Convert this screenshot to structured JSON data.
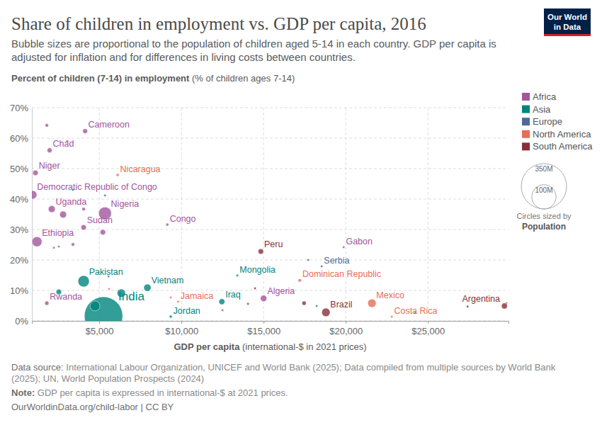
{
  "chart_data": {
    "type": "scatter",
    "title": "Share of children in employment vs. GDP per capita, 2016",
    "subtitle": "Bubble sizes are proportional to the population of children aged 5-14 in each country. GDP per capita is adjusted for inflation and for differences in living costs between countries.",
    "ylabel": "Percent of children (7-14) in employment",
    "ylabel_note": "(% of children ages 7-14)",
    "xlabel": "GDP per capita",
    "xlabel_note": "(international-$ in 2021 prices)",
    "xlim": [
      900,
      29900
    ],
    "ylim": [
      0,
      70
    ],
    "xticks": [
      {
        "value": 5000,
        "label": "$5,000"
      },
      {
        "value": 10000,
        "label": "$10,000"
      },
      {
        "value": 15000,
        "label": "$15,000"
      },
      {
        "value": 20000,
        "label": "$20,000"
      },
      {
        "value": 25000,
        "label": "$25,000"
      }
    ],
    "yticks": [
      {
        "value": 0,
        "label": "0%"
      },
      {
        "value": 10,
        "label": "10%"
      },
      {
        "value": 20,
        "label": "20%"
      },
      {
        "value": 30,
        "label": "30%"
      },
      {
        "value": 40,
        "label": "40%"
      },
      {
        "value": 50,
        "label": "50%"
      },
      {
        "value": 60,
        "label": "60%"
      },
      {
        "value": 70,
        "label": "70%"
      }
    ],
    "grid": true,
    "legend": "right",
    "marker": "circle",
    "series": [
      {
        "name": "Africa",
        "color": "#a2559c",
        "labels": [
          null,
          "Cameroon",
          null,
          "Chad",
          "Niger",
          "Democratic Republic of Congo",
          "Uganda",
          null,
          null,
          "Nigeria",
          "Sudan",
          null,
          "Congo",
          "Ethiopia",
          null,
          null,
          null,
          "Gabon",
          "Rwanda",
          "Algeria",
          null,
          null
        ],
        "x": [
          1810,
          4140,
          3060,
          1980,
          1120,
          950,
          2110,
          2800,
          4050,
          5350,
          4050,
          5220,
          9140,
          1210,
          2240,
          2540,
          3400,
          19870,
          1810,
          15000,
          12500,
          5560
        ],
        "values": [
          64.2,
          62.3,
          59.0,
          56.0,
          48.6,
          41.4,
          36.7,
          34.9,
          36.7,
          35.3,
          30.7,
          29.1,
          31.6,
          26.0,
          24.0,
          24.4,
          25.1,
          24.2,
          5.8,
          7.4,
          3.5,
          14.6
        ],
        "sizes": [
          2,
          4,
          1,
          4,
          5,
          12,
          8,
          8,
          2,
          28,
          5,
          5,
          1.5,
          17,
          1,
          1,
          2,
          1,
          3,
          7,
          1,
          1
        ]
      },
      {
        "name": "Asia",
        "color": "#00847e",
        "labels": [
          null,
          null,
          "Pakistan",
          "Vietnam",
          null,
          null,
          "India",
          null,
          "Mongolia",
          "Iraq",
          "Jordan"
        ],
        "x": [
          3400,
          5350,
          4050,
          7930,
          6340,
          2540,
          5260,
          4740,
          13400,
          12460,
          9350
        ],
        "values": [
          43.0,
          41.2,
          13.0,
          10.9,
          9.1,
          9.5,
          1.6,
          4.9,
          14.9,
          6.3,
          1.4
        ],
        "sizes": [
          1,
          1,
          22,
          9,
          12,
          5,
          250,
          17,
          1,
          6,
          1.5
        ]
      },
      {
        "name": "Europe",
        "color": "#4c6a9c",
        "labels": [
          null,
          "Serbia",
          null,
          null
        ],
        "x": [
          17710,
          18530,
          18230,
          24220
        ],
        "values": [
          20.0,
          17.9,
          4.9,
          2.6
        ],
        "sizes": [
          1,
          1,
          1,
          1
        ]
      },
      {
        "name": "North America",
        "color": "#e56e5a",
        "labels": [
          "Nicaragua",
          "Dominican Republic",
          null,
          "Jamaica",
          null,
          "Mexico",
          "Costa Rica",
          null
        ],
        "x": [
          6120,
          17200,
          9350,
          9800,
          5600,
          21590,
          22800,
          29780
        ],
        "values": [
          47.9,
          13.3,
          7.7,
          6.3,
          10.5,
          5.8,
          1.4,
          5.8
        ],
        "sizes": [
          1.5,
          2,
          1,
          1,
          1,
          12,
          1,
          1
        ]
      },
      {
        "name": "South America",
        "color": "#883039",
        "labels": [
          "Peru",
          null,
          null,
          null,
          "Brazil",
          "Argentina",
          null
        ],
        "x": [
          14830,
          14050,
          14480,
          17460,
          18790,
          29650,
          27410
        ],
        "values": [
          22.8,
          5.6,
          10.7,
          5.8,
          2.8,
          4.9,
          4.7
        ],
        "sizes": [
          5,
          1,
          1,
          3,
          12,
          6,
          1
        ]
      }
    ],
    "size_legend": {
      "values": [
        350,
        100
      ],
      "labels": [
        "350M",
        "100M"
      ],
      "title": "Circles sized by",
      "name": "Population"
    },
    "logo": [
      "Our World",
      "in Data"
    ],
    "source_label": "Data source:",
    "source": "International Labour Organization, UNICEF and World Bank (2025); Data compiled from multiple sources by World Bank (2025); UN, World Population Prospects (2024)",
    "note_label": "Note:",
    "note": "GDP per capita is expressed in international-$ at 2021 prices.",
    "url": "OurWorldinData.org/child-labor | CC BY"
  }
}
